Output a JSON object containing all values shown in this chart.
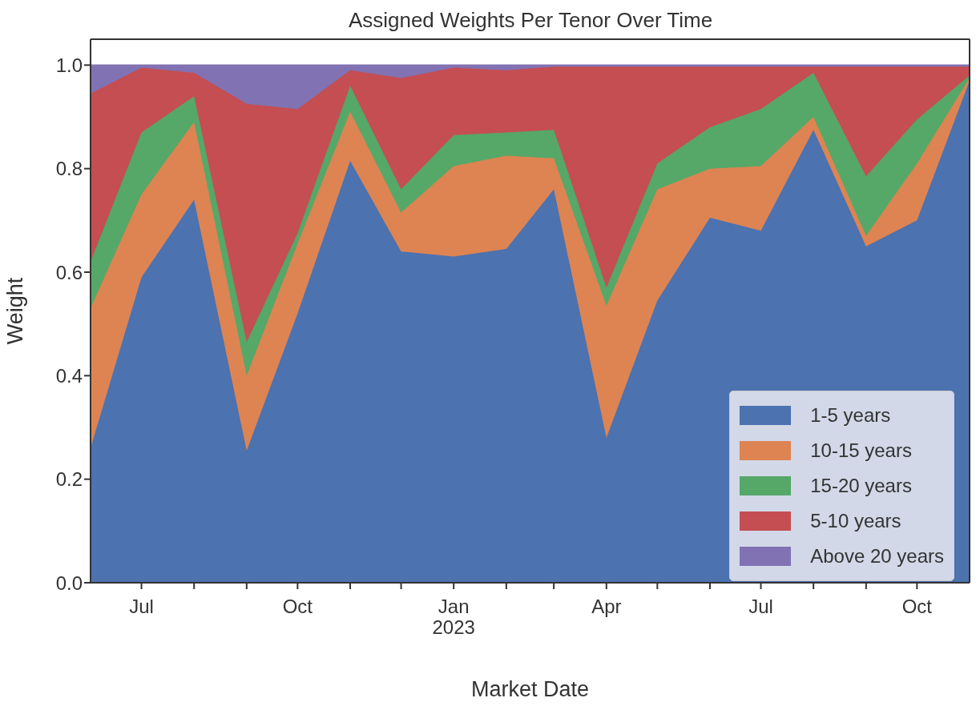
{
  "chart_data": {
    "type": "area",
    "title": "Assigned Weights Per Tenor Over Time",
    "xlabel": "Market Date",
    "ylabel": "Weight",
    "stacked": true,
    "legend": "bottom right",
    "grid": false,
    "x": [
      "2022-06-01",
      "2022-07-01",
      "2022-08-01",
      "2022-09-01",
      "2022-10-01",
      "2022-11-01",
      "2022-12-01",
      "2023-01-01",
      "2023-02-01",
      "2023-03-01",
      "2023-04-01",
      "2023-05-01",
      "2023-06-01",
      "2023-07-01",
      "2023-08-01",
      "2023-09-01",
      "2023-10-01",
      "2023-11-01"
    ],
    "xlim": [
      "2022-06-01",
      "2023-11-01"
    ],
    "xticks": [
      {
        "value": "2022-07-01",
        "label": "Jul"
      },
      {
        "value": "2022-08-01",
        "label": null
      },
      {
        "value": "2022-09-01",
        "label": null
      },
      {
        "value": "2022-10-01",
        "label": "Oct"
      },
      {
        "value": "2022-11-01",
        "label": null
      },
      {
        "value": "2022-12-01",
        "label": null
      },
      {
        "value": "2023-01-01",
        "label": "Jan\n2023"
      },
      {
        "value": "2023-02-01",
        "label": null
      },
      {
        "value": "2023-03-01",
        "label": null
      },
      {
        "value": "2023-04-01",
        "label": "Apr"
      },
      {
        "value": "2023-05-01",
        "label": null
      },
      {
        "value": "2023-06-01",
        "label": null
      },
      {
        "value": "2023-07-01",
        "label": "Jul"
      },
      {
        "value": "2023-08-01",
        "label": null
      },
      {
        "value": "2023-09-01",
        "label": null
      },
      {
        "value": "2023-10-01",
        "label": "Oct"
      }
    ],
    "ylim": [
      0,
      1.05
    ],
    "yticks": [
      {
        "value": 0,
        "label": "0.0"
      },
      {
        "value": 0.2,
        "label": "0.2"
      },
      {
        "value": 0.4,
        "label": "0.4"
      },
      {
        "value": 0.6,
        "label": "0.6"
      },
      {
        "value": 0.8,
        "label": "0.8"
      },
      {
        "value": 1,
        "label": "1.0"
      }
    ],
    "series": [
      {
        "name": "1-5 years",
        "color": "#4c72b0",
        "values": [
          0.26,
          0.59,
          0.74,
          0.255,
          0.52,
          0.815,
          0.64,
          0.63,
          0.645,
          0.76,
          0.28,
          0.545,
          0.705,
          0.68,
          0.875,
          0.65,
          0.7,
          0.97
        ]
      },
      {
        "name": "10-15 years",
        "color": "#dd8452",
        "values": [
          0.27,
          0.16,
          0.15,
          0.145,
          0.135,
          0.095,
          0.075,
          0.175,
          0.18,
          0.06,
          0.255,
          0.215,
          0.095,
          0.125,
          0.025,
          0.02,
          0.11,
          0.005
        ]
      },
      {
        "name": "15-20 years",
        "color": "#55a868",
        "values": [
          0.09,
          0.12,
          0.05,
          0.065,
          0.02,
          0.05,
          0.045,
          0.06,
          0.045,
          0.055,
          0.035,
          0.05,
          0.08,
          0.11,
          0.085,
          0.115,
          0.085,
          0.005
        ]
      },
      {
        "name": "5-10 years",
        "color": "#c44e52",
        "values": [
          0.325,
          0.125,
          0.045,
          0.46,
          0.24,
          0.03,
          0.215,
          0.13,
          0.12,
          0.122,
          0.427,
          0.187,
          0.117,
          0.082,
          0.012,
          0.212,
          0.102,
          0.017
        ]
      },
      {
        "name": "Above 20 years",
        "color": "#8172b3",
        "values": [
          0.055,
          0.005,
          0.015,
          0.075,
          0.085,
          0.01,
          0.025,
          0.005,
          0.01,
          0.003,
          0.003,
          0.003,
          0.003,
          0.003,
          0.003,
          0.003,
          0.003,
          0.003
        ]
      }
    ]
  }
}
